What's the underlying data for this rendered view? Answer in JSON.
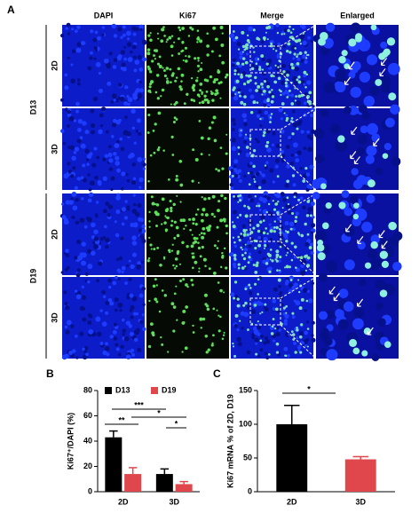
{
  "panel_a": {
    "label": "A",
    "columns": [
      "DAPI",
      "Ki67",
      "Merge",
      "Enlarged"
    ],
    "groups": [
      {
        "label": "D13",
        "rows": [
          "2D",
          "3D"
        ]
      },
      {
        "label": "D19",
        "rows": [
          "2D",
          "3D"
        ]
      }
    ]
  },
  "chart_data": [
    {
      "type": "bar",
      "panel_label": "B",
      "ylabel": "Ki67⁺/DAPI (%)",
      "categories": [
        "2D",
        "3D"
      ],
      "series": [
        {
          "name": "D13",
          "color": "#000000",
          "values": [
            43,
            14
          ],
          "errors": [
            5,
            4
          ]
        },
        {
          "name": "D19",
          "color": "#e0474c",
          "values": [
            14,
            6
          ],
          "errors": [
            5,
            2
          ]
        }
      ],
      "ylim": [
        0,
        80
      ],
      "yticks": [
        0,
        20,
        40,
        60,
        80
      ],
      "legend": "top",
      "annotations": [
        {
          "text": "**"
        },
        {
          "text": "***"
        },
        {
          "text": "*"
        },
        {
          "text": "*"
        }
      ]
    },
    {
      "type": "bar",
      "panel_label": "C",
      "ylabel": "Ki67 mRNA % of 2D, D19",
      "categories": [
        "2D",
        "3D"
      ],
      "values": [
        100,
        48
      ],
      "errors": [
        28,
        4
      ],
      "colors": [
        "#000000",
        "#e0474c"
      ],
      "ylim": [
        0,
        150
      ],
      "yticks": [
        0,
        50,
        100,
        150
      ],
      "annotations": [
        {
          "text": "*"
        }
      ]
    }
  ]
}
